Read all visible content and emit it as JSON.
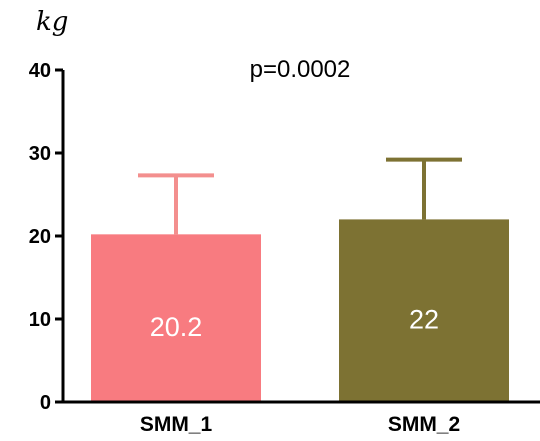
{
  "chart_data": {
    "type": "bar",
    "categories": [
      "SMM_1",
      "SMM_2"
    ],
    "values": [
      20.2,
      22
    ],
    "error_upper": [
      27.3,
      29.2
    ],
    "data_labels": [
      "20.2",
      "22"
    ],
    "colors": [
      "#f87b80",
      "#7d7233"
    ],
    "error_bar_colors": [
      "#f38f8e",
      "#7d7233"
    ],
    "annotation": "p=0.0002",
    "ylabel": "kg",
    "ylim": [
      0,
      40
    ],
    "yticks": [
      0,
      10,
      20,
      30,
      40
    ],
    "grid": false
  }
}
